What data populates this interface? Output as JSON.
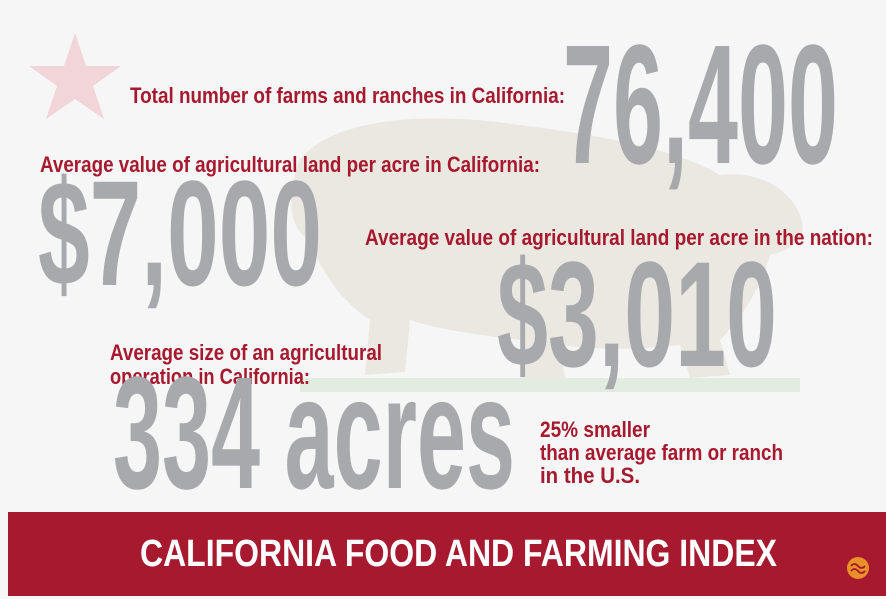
{
  "stats": [
    {
      "label": "Total number of farms and ranches in California:",
      "value": "76,400"
    },
    {
      "label": "Average value of agricultural land per acre in California:",
      "value": "$7,000"
    },
    {
      "label": "Average value of agricultural land per acre in the nation:",
      "value": "$3,010"
    },
    {
      "label": [
        "Average size of an agricultural",
        "operation in California:"
      ],
      "value": "334 acres"
    }
  ],
  "comparison": [
    "25% smaller",
    "than average farm or ranch",
    "in the U.S."
  ],
  "banner": {
    "title": "CALIFORNIA FOOD AND FARMING INDEX"
  }
}
